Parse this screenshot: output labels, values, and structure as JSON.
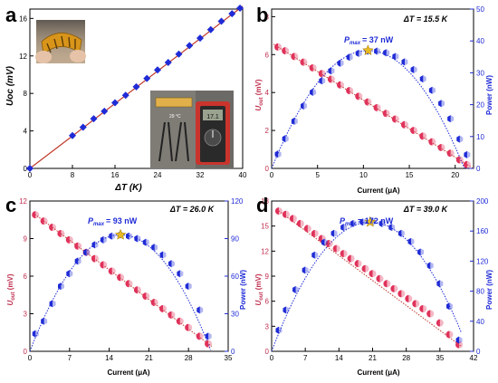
{
  "colors": {
    "voltage": "#e0325a",
    "power": "#1f2bd6",
    "fit_line": "#c0392b",
    "axis": "#000000",
    "right_axis": "#1f2bd6",
    "star": "#e8b923"
  },
  "chart_data": [
    {
      "panel": "a",
      "type": "line",
      "title": "",
      "xlabel": "ΔT (K)",
      "ylabel": "U_oc (mV)",
      "xlim": [
        0,
        40
      ],
      "ylim": [
        0,
        17
      ],
      "xticks": [
        0,
        8,
        16,
        24,
        32,
        40
      ],
      "yticks": [
        0,
        4,
        8,
        12,
        16
      ],
      "legend": "none",
      "grid": false,
      "insets": [
        "photo-flexible-device",
        "photo-measurement-multimeter"
      ],
      "series": [
        {
          "name": "",
          "marker": "diamond",
          "x": [
            0,
            8,
            10,
            12,
            14,
            16,
            18,
            20,
            22,
            24,
            26,
            28,
            30,
            32,
            34,
            36,
            38,
            39.5
          ],
          "y": [
            0,
            3.5,
            4.4,
            5.3,
            6.1,
            7.0,
            7.8,
            8.7,
            9.6,
            10.5,
            11.3,
            12.2,
            13.1,
            13.9,
            14.8,
            15.7,
            16.5,
            17.1
          ]
        }
      ],
      "fit": {
        "x": [
          0,
          40
        ],
        "y": [
          0,
          17.3
        ]
      }
    },
    {
      "panel": "b",
      "type": "scatter",
      "annotation_dt": "ΔT = 15.5 K",
      "annotation_pmax": "Pmax = 37 nW",
      "xlabel": "Current (μA)",
      "ylabel": "U_out (mV)",
      "y2label": "Power (nW)",
      "xlim": [
        0,
        22
      ],
      "ylim": [
        0,
        8.4
      ],
      "y2lim": [
        0,
        50
      ],
      "xticks": [
        0,
        5,
        10,
        15,
        20
      ],
      "yticks": [
        0,
        2,
        4,
        6,
        8
      ],
      "y2ticks": [
        0,
        10,
        20,
        30,
        40,
        50
      ],
      "voltage_x": [
        0.7,
        1.5,
        2.5,
        3.5,
        4.5,
        5.5,
        6.5,
        7.5,
        8.5,
        9.5,
        10.5,
        11.5,
        12.5,
        13.5,
        14.5,
        15.5,
        16.5,
        17.5,
        18.5,
        19.5,
        20.5,
        21.3
      ],
      "voltage_y": [
        6.4,
        6.2,
        5.9,
        5.6,
        5.3,
        5.0,
        4.7,
        4.4,
        4.1,
        3.8,
        3.5,
        3.2,
        2.9,
        2.6,
        2.3,
        2.0,
        1.7,
        1.4,
        1.1,
        0.8,
        0.45,
        0.2
      ],
      "power_x": [
        0.7,
        1.5,
        2.5,
        3.5,
        4.5,
        5.5,
        6.5,
        7.5,
        8.5,
        9.5,
        10.5,
        11.5,
        12.5,
        13.5,
        14.5,
        15.5,
        16.5,
        17.5,
        18.5,
        19.5,
        20.5,
        21.3
      ],
      "power_y": [
        4.5,
        9.3,
        14.8,
        19.6,
        23.9,
        27.5,
        30.6,
        33.0,
        34.9,
        36.1,
        36.8,
        36.8,
        36.3,
        35.1,
        33.4,
        31.0,
        28.1,
        24.5,
        20.4,
        15.6,
        9.2,
        4.3
      ],
      "pmax_point": {
        "x": 10.5,
        "y": 37
      }
    },
    {
      "panel": "c",
      "type": "scatter",
      "annotation_dt": "ΔT = 26.0 K",
      "annotation_pmax": "Pmax = 93 nW",
      "xlabel": "Current (μA)",
      "ylabel": "U_out (mV)",
      "y2label": "Power (nW)",
      "xlim": [
        0,
        35
      ],
      "ylim": [
        0,
        12
      ],
      "y2lim": [
        0,
        120
      ],
      "xticks": [
        0,
        7,
        14,
        21,
        28,
        35
      ],
      "yticks": [
        0,
        3,
        6,
        9,
        12
      ],
      "y2ticks": [
        0,
        30,
        60,
        90,
        120
      ],
      "voltage_x": [
        1,
        2.5,
        4,
        5.5,
        7,
        8.5,
        10,
        11.5,
        13,
        14.5,
        16,
        17.5,
        19,
        20.5,
        22,
        23.5,
        25,
        26.5,
        28,
        30,
        31.5
      ],
      "voltage_y": [
        10.9,
        10.4,
        9.9,
        9.4,
        8.9,
        8.4,
        7.9,
        7.4,
        6.9,
        6.4,
        5.9,
        5.4,
        4.9,
        4.4,
        3.9,
        3.4,
        2.9,
        2.4,
        1.9,
        1.2,
        0.6
      ],
      "power_x": [
        1,
        2.5,
        4,
        5.5,
        7,
        8.5,
        10,
        11.5,
        13,
        14.5,
        16,
        17.5,
        19,
        20.5,
        22,
        23.5,
        25,
        26.5,
        28,
        30,
        31.5
      ],
      "power_y": [
        14,
        24,
        38,
        52,
        62,
        72,
        79,
        85,
        89,
        92,
        93,
        92,
        90,
        87,
        83,
        77,
        70,
        62,
        52,
        33,
        12
      ],
      "pmax_point": {
        "x": 16,
        "y": 93
      }
    },
    {
      "panel": "d",
      "type": "scatter",
      "annotation_dt": "ΔT = 39.0 K",
      "annotation_pmax": "Pmax = 172 nW",
      "xlabel": "Current (μA)",
      "ylabel": "U_out (mV)",
      "y2label": "Power (nW)",
      "xlim": [
        0,
        42
      ],
      "ylim": [
        0,
        18
      ],
      "y2lim": [
        0,
        200
      ],
      "xticks": [
        0,
        7,
        14,
        21,
        28,
        35,
        42
      ],
      "yticks": [
        0,
        3,
        6,
        9,
        12,
        15,
        18
      ],
      "y2ticks": [
        0,
        40,
        80,
        120,
        160,
        200
      ],
      "voltage_x": [
        1.5,
        3,
        4.5,
        6,
        7.5,
        9,
        10.5,
        12,
        13.5,
        15,
        16.5,
        18,
        19.5,
        21,
        22.5,
        24,
        25.5,
        27,
        28.5,
        30,
        31.5,
        33,
        35,
        37,
        39
      ],
      "voltage_y": [
        16.8,
        16.4,
        15.9,
        15.3,
        14.7,
        14.1,
        13.5,
        12.9,
        12.3,
        11.7,
        11.1,
        10.5,
        9.9,
        9.3,
        8.7,
        8.1,
        7.5,
        6.9,
        6.3,
        5.7,
        5.1,
        4.5,
        3.4,
        2.0,
        0.8
      ],
      "power_x": [
        1.5,
        3,
        5,
        7,
        9,
        11,
        13,
        15,
        17,
        19,
        21,
        23,
        25,
        27,
        29,
        31,
        33,
        35,
        37,
        39
      ],
      "power_y": [
        28,
        55,
        82,
        108,
        128,
        145,
        157,
        165,
        170,
        172,
        172,
        170,
        165,
        157,
        146,
        132,
        114,
        90,
        60,
        15
      ],
      "pmax_point": {
        "x": 20.5,
        "y": 172
      }
    }
  ],
  "labels": {
    "panel_a": "a",
    "panel_b": "b",
    "panel_c": "c",
    "panel_d": "d",
    "a_xlabel": "ΔT (K)",
    "a_ylabel": "Uoc (mV)",
    "inset_temp": "29 °C",
    "inset_meter_reading": "17.1",
    "b_dt": "ΔT = 15.5 K",
    "b_pmax_value": "= 37 nW",
    "c_dt": "ΔT = 26.0 K",
    "c_pmax_value": "= 93 nW",
    "d_dt": "ΔT = 39.0 K",
    "d_pmax_value": "= 172 nW",
    "pmax_symbol": "P",
    "pmax_sub": "max",
    "current_label": "Current (μA)",
    "uout_symbol": "U",
    "uout_sub": "out",
    "uout_unit": " (mV)",
    "power_label": "Power (nW)"
  }
}
